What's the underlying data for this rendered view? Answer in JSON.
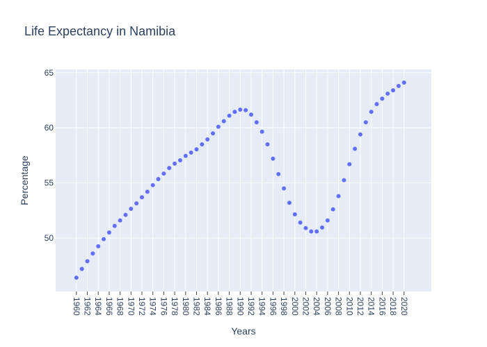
{
  "chart_data": {
    "type": "scatter",
    "title": "Life Expectancy in Namibia",
    "xlabel": "Years",
    "ylabel": "Percentage",
    "color": "#636efa",
    "grid": true,
    "x": [
      1960,
      1961,
      1962,
      1963,
      1964,
      1965,
      1966,
      1967,
      1968,
      1969,
      1970,
      1971,
      1972,
      1973,
      1974,
      1975,
      1976,
      1977,
      1978,
      1979,
      1980,
      1981,
      1982,
      1983,
      1984,
      1985,
      1986,
      1987,
      1988,
      1989,
      1990,
      1991,
      1992,
      1993,
      1994,
      1995,
      1996,
      1997,
      1998,
      1999,
      2000,
      2001,
      2002,
      2003,
      2004,
      2005,
      2006,
      2007,
      2008,
      2009,
      2010,
      2011,
      2012,
      2013,
      2014,
      2015,
      2016,
      2017,
      2018,
      2019,
      2020
    ],
    "values": [
      46.4,
      47.2,
      47.9,
      48.6,
      49.25,
      49.9,
      50.5,
      51.1,
      51.6,
      52.1,
      52.65,
      53.15,
      53.7,
      54.2,
      54.8,
      55.35,
      55.85,
      56.35,
      56.75,
      57.05,
      57.45,
      57.75,
      58.05,
      58.5,
      58.95,
      59.5,
      60.1,
      60.6,
      61.1,
      61.45,
      61.65,
      61.6,
      61.2,
      60.5,
      59.65,
      58.5,
      57.2,
      55.8,
      54.5,
      53.2,
      52.15,
      51.4,
      50.9,
      50.6,
      50.6,
      50.95,
      51.6,
      52.6,
      53.8,
      55.25,
      56.7,
      58.1,
      59.4,
      60.5,
      61.45,
      62.15,
      62.65,
      63.1,
      63.4,
      63.8,
      64.1
    ],
    "xlim": [
      1956.2,
      2025.0
    ],
    "xticks": [
      1960,
      1962,
      1964,
      1966,
      1968,
      1970,
      1972,
      1974,
      1976,
      1978,
      1980,
      1982,
      1984,
      1986,
      1988,
      1990,
      1992,
      1994,
      1996,
      1998,
      2000,
      2002,
      2004,
      2006,
      2008,
      2010,
      2012,
      2014,
      2016,
      2018,
      2020
    ],
    "ylim": [
      45.15,
      65.3
    ],
    "yticks": [
      50,
      55,
      60,
      65
    ]
  }
}
